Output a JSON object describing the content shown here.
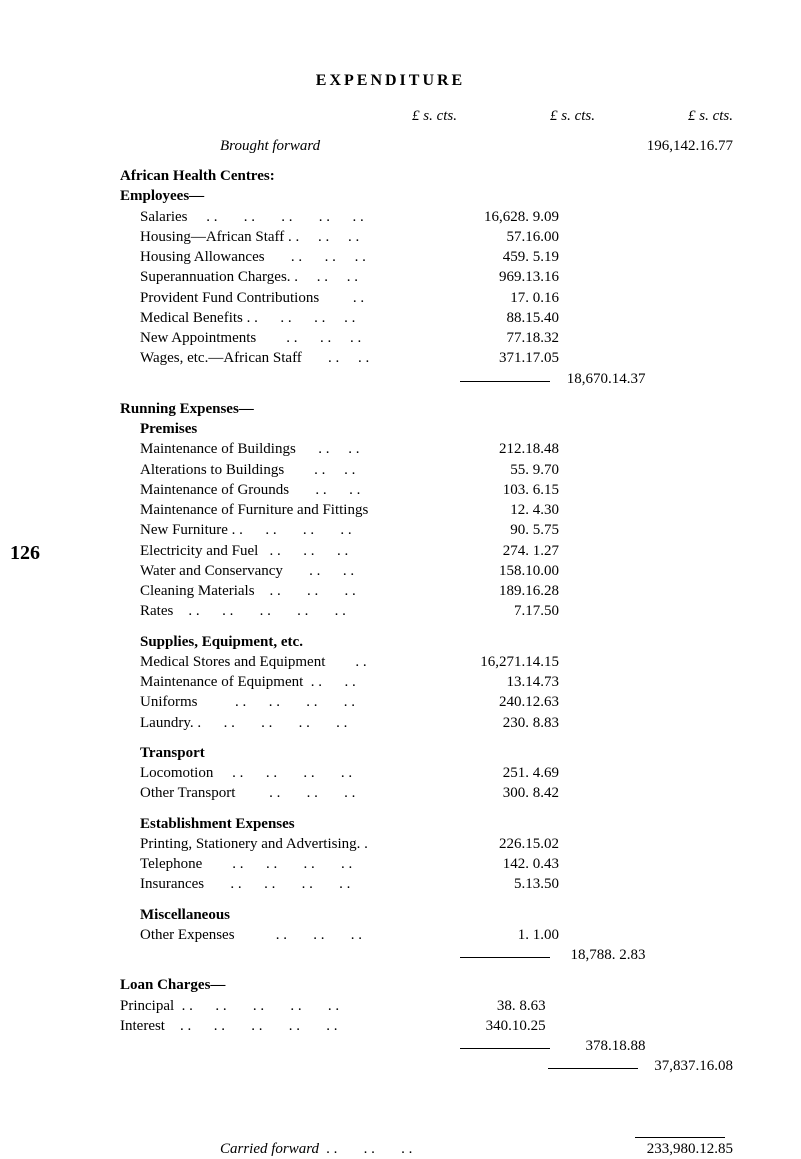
{
  "page_number": "126",
  "title": "EXPENDITURE",
  "col_labels": {
    "c1": "£    s. cts.",
    "c2": "£    s. cts.",
    "c3": "£    s. cts."
  },
  "brought_forward": {
    "label": "Brought forward",
    "c3": "196,142.16.77"
  },
  "s1": {
    "heading": "African Health Centres:",
    "employees_heading": "Employees—",
    "rows": [
      {
        "label": "Salaries     . .       . .       . .       . .      . .",
        "c1": "16,628.  9.09"
      },
      {
        "label": "Housing—African Staff . .     . .     . .",
        "c1": "57.16.00"
      },
      {
        "label": "Housing Allowances       . .      . .     . .",
        "c1": "459.  5.19"
      },
      {
        "label": "Superannuation Charges. .     . .     . .",
        "c1": "969.13.16"
      },
      {
        "label": "Provident Fund Contributions         . .",
        "c1": "17.  0.16"
      },
      {
        "label": "Medical Benefits . .      . .      . .     . .",
        "c1": "88.15.40"
      },
      {
        "label": "New Appointments        . .      . .     . .",
        "c1": "77.18.32"
      },
      {
        "label": "Wages, etc.—African Staff       . .     . .",
        "c1": "371.17.05"
      }
    ],
    "subtotal_c2": "18,670.14.37"
  },
  "running_heading": "Running Expenses—",
  "premises": {
    "heading": "Premises",
    "rows": [
      {
        "label": "Maintenance of Buildings      . .     . .",
        "c1": "212.18.48"
      },
      {
        "label": "Alterations to Buildings        . .     . .",
        "c1": "55.  9.70"
      },
      {
        "label": "Maintenance of Grounds       . .      . .",
        "c1": "103.  6.15"
      },
      {
        "label": "Maintenance of Furniture and Fittings",
        "c1": "12.  4.30"
      },
      {
        "label": "New Furniture . .      . .       . .       . .",
        "c1": "90.  5.75"
      },
      {
        "label": "Electricity and Fuel   . .      . .      . .",
        "c1": "274.  1.27"
      },
      {
        "label": "Water and Conservancy       . .      . .",
        "c1": "158.10.00"
      },
      {
        "label": "Cleaning Materials    . .       . .       . .",
        "c1": "189.16.28"
      },
      {
        "label": "Rates    . .      . .       . .       . .       . .",
        "c1": "7.17.50"
      }
    ]
  },
  "supplies": {
    "heading": "Supplies, Equipment, etc.",
    "rows": [
      {
        "label": "Medical Stores and Equipment        . .",
        "c1": "16,271.14.15"
      },
      {
        "label": "Maintenance of Equipment  . .      . .",
        "c1": "13.14.73"
      },
      {
        "label": "Uniforms          . .      . .       . .       . .",
        "c1": "240.12.63"
      },
      {
        "label": "Laundry. .      . .       . .       . .       . .",
        "c1": "230.  8.83"
      }
    ]
  },
  "transport": {
    "heading": "Transport",
    "rows": [
      {
        "label": "Locomotion     . .      . .       . .       . .",
        "c1": "251.  4.69"
      },
      {
        "label": "Other Transport         . .       . .       . .",
        "c1": "300.  8.42"
      }
    ]
  },
  "establishment": {
    "heading": "Establishment Expenses",
    "rows": [
      {
        "label": "Printing, Stationery and Advertising. .",
        "c1": "226.15.02"
      },
      {
        "label": "Telephone        . .      . .       . .       . .",
        "c1": "142.  0.43"
      },
      {
        "label": "Insurances       . .      . .       . .       . .",
        "c1": "5.13.50"
      }
    ]
  },
  "misc": {
    "heading": "Miscellaneous",
    "rows": [
      {
        "label": "Other Expenses           . .       . .       . .",
        "c1": "1.  1.00"
      }
    ],
    "subtotal_c2": "18,788.  2.83"
  },
  "loan": {
    "heading": "Loan Charges—",
    "rows": [
      {
        "label": "Principal  . .      . .       . .       . .       . .",
        "c1": "38.  8.63"
      },
      {
        "label": "Interest    . .      . .       . .       . .       . .",
        "c1": "340.10.25"
      }
    ],
    "subtotal_c2": "378.18.88",
    "total_c3": "37,837.16.08"
  },
  "carried_forward": {
    "label": "Carried forward  . .       . .       . .",
    "c3": "233,980.12.85"
  }
}
